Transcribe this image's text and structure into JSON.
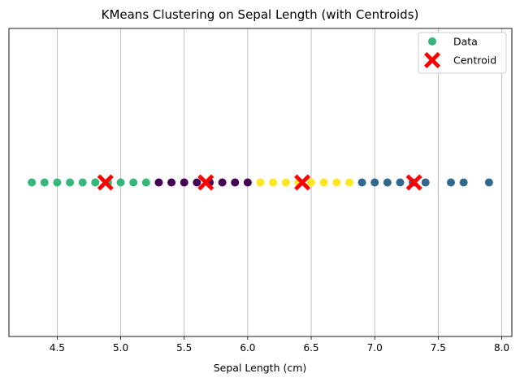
{
  "chart_data": {
    "type": "scatter",
    "title": "KMeans Clustering on Sepal Length (with Centroids)",
    "xlabel": "Sepal Length (cm)",
    "ylabel": "",
    "xlim": [
      4.12,
      8.08
    ],
    "ylim": [
      -1,
      1
    ],
    "x_ticks": [
      "4.5",
      "5.0",
      "5.5",
      "6.0",
      "6.5",
      "7.0",
      "7.5",
      "8.0"
    ],
    "x_tick_values": [
      4.5,
      5.0,
      5.5,
      6.0,
      6.5,
      7.0,
      7.5,
      8.0
    ],
    "grid": "x",
    "legend_position": "top-right",
    "series": [
      {
        "name": "Data",
        "marker": "circle",
        "legend_color": "#35b779",
        "points": [
          {
            "x": 4.3,
            "y": 0,
            "color": "#35b779"
          },
          {
            "x": 4.4,
            "y": 0,
            "color": "#35b779"
          },
          {
            "x": 4.5,
            "y": 0,
            "color": "#35b779"
          },
          {
            "x": 4.6,
            "y": 0,
            "color": "#35b779"
          },
          {
            "x": 4.7,
            "y": 0,
            "color": "#35b779"
          },
          {
            "x": 4.8,
            "y": 0,
            "color": "#35b779"
          },
          {
            "x": 4.9,
            "y": 0,
            "color": "#35b779"
          },
          {
            "x": 5.0,
            "y": 0,
            "color": "#35b779"
          },
          {
            "x": 5.1,
            "y": 0,
            "color": "#35b779"
          },
          {
            "x": 5.2,
            "y": 0,
            "color": "#35b779"
          },
          {
            "x": 5.3,
            "y": 0,
            "color": "#440154"
          },
          {
            "x": 5.4,
            "y": 0,
            "color": "#440154"
          },
          {
            "x": 5.5,
            "y": 0,
            "color": "#440154"
          },
          {
            "x": 5.6,
            "y": 0,
            "color": "#440154"
          },
          {
            "x": 5.7,
            "y": 0,
            "color": "#440154"
          },
          {
            "x": 5.8,
            "y": 0,
            "color": "#440154"
          },
          {
            "x": 5.9,
            "y": 0,
            "color": "#440154"
          },
          {
            "x": 6.0,
            "y": 0,
            "color": "#440154"
          },
          {
            "x": 6.1,
            "y": 0,
            "color": "#fde725"
          },
          {
            "x": 6.2,
            "y": 0,
            "color": "#fde725"
          },
          {
            "x": 6.3,
            "y": 0,
            "color": "#fde725"
          },
          {
            "x": 6.4,
            "y": 0,
            "color": "#fde725"
          },
          {
            "x": 6.5,
            "y": 0,
            "color": "#fde725"
          },
          {
            "x": 6.6,
            "y": 0,
            "color": "#fde725"
          },
          {
            "x": 6.7,
            "y": 0,
            "color": "#fde725"
          },
          {
            "x": 6.8,
            "y": 0,
            "color": "#fde725"
          },
          {
            "x": 6.9,
            "y": 0,
            "color": "#31688e"
          },
          {
            "x": 7.0,
            "y": 0,
            "color": "#31688e"
          },
          {
            "x": 7.1,
            "y": 0,
            "color": "#31688e"
          },
          {
            "x": 7.2,
            "y": 0,
            "color": "#31688e"
          },
          {
            "x": 7.3,
            "y": 0,
            "color": "#31688e"
          },
          {
            "x": 7.4,
            "y": 0,
            "color": "#31688e"
          },
          {
            "x": 7.6,
            "y": 0,
            "color": "#31688e"
          },
          {
            "x": 7.7,
            "y": 0,
            "color": "#31688e"
          },
          {
            "x": 7.9,
            "y": 0,
            "color": "#31688e"
          }
        ]
      },
      {
        "name": "Centroid",
        "marker": "x",
        "color": "#ff0000",
        "points": [
          {
            "x": 4.88,
            "y": 0
          },
          {
            "x": 5.67,
            "y": 0
          },
          {
            "x": 6.43,
            "y": 0
          },
          {
            "x": 7.31,
            "y": 0
          }
        ]
      }
    ]
  }
}
